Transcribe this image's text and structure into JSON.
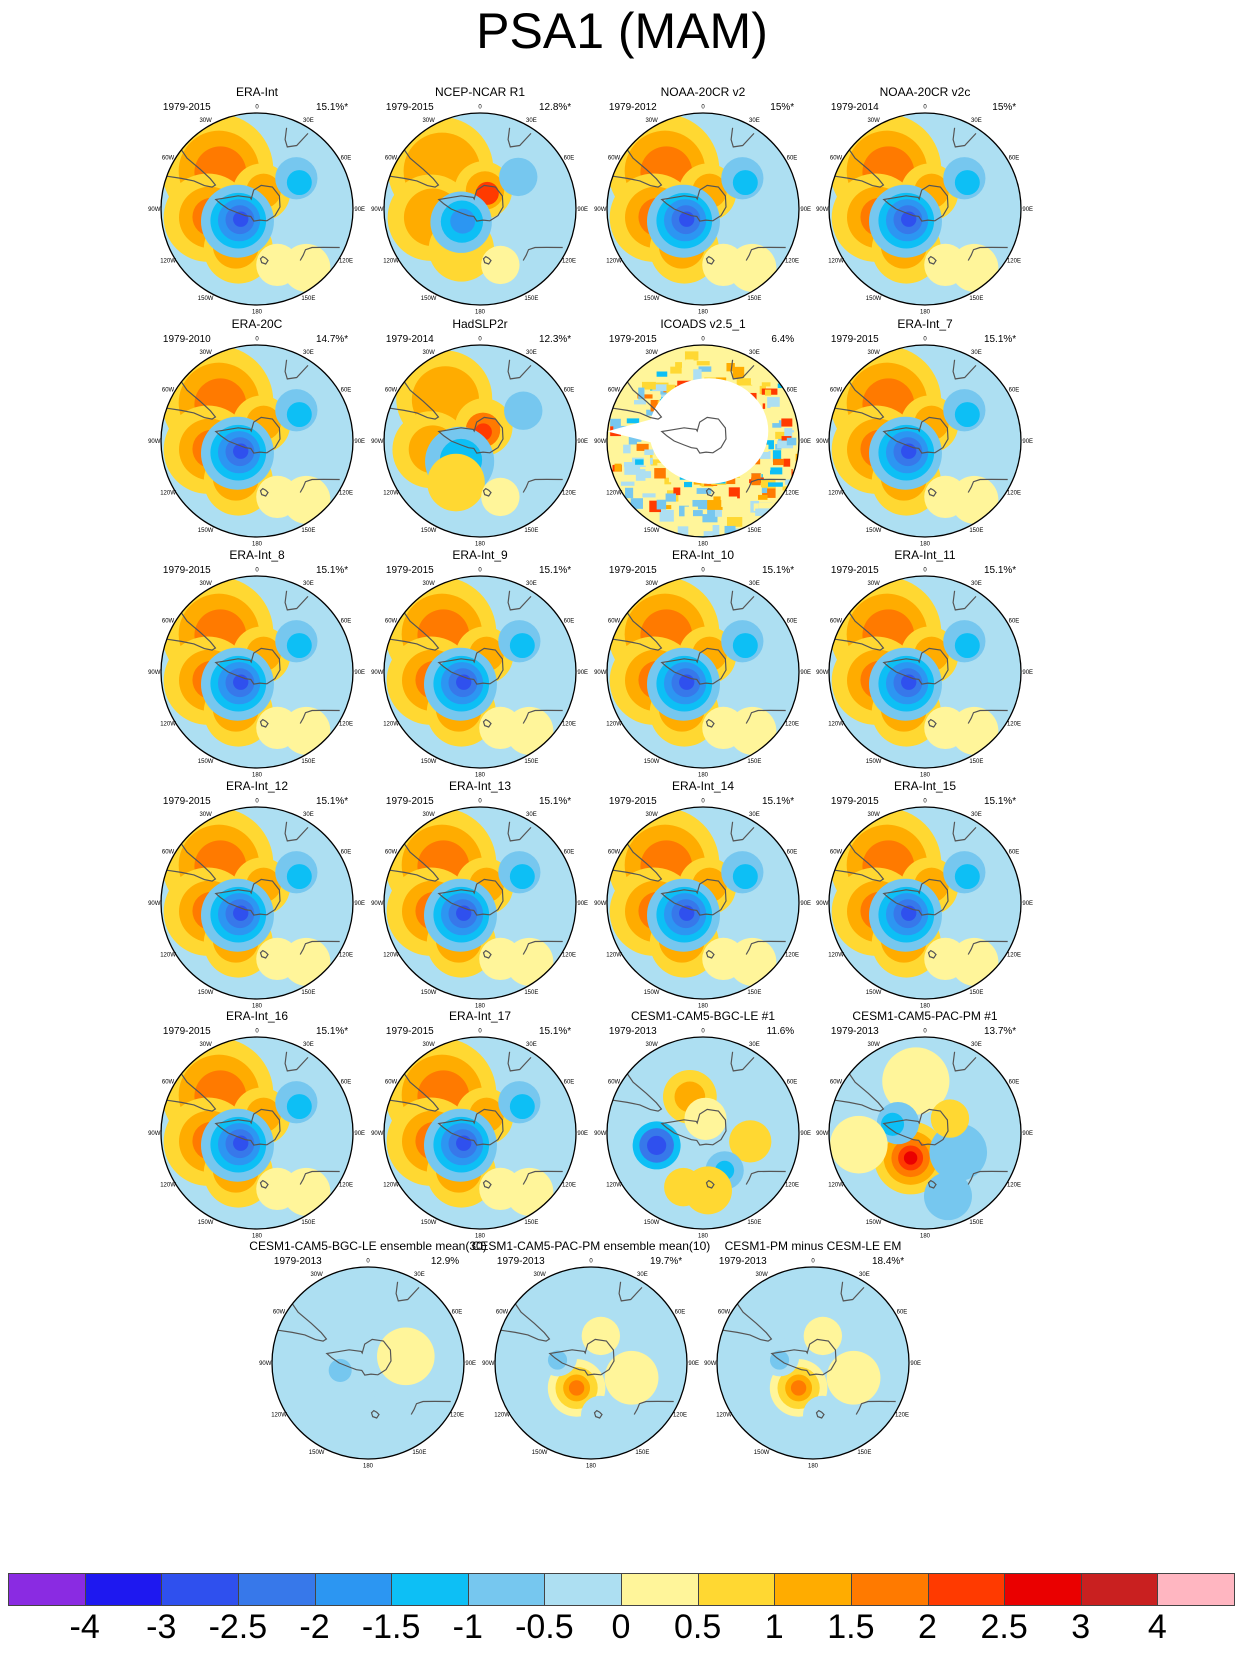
{
  "title": "PSA1 (MAM)",
  "colorbar": {
    "labels": [
      "-4",
      "-3",
      "-2.5",
      "-2",
      "-1.5",
      "-1",
      "-0.5",
      "0",
      "0.5",
      "1",
      "1.5",
      "2",
      "2.5",
      "3",
      "4"
    ],
    "colors": [
      "#8a2be2",
      "#1e18f0",
      "#2f50ee",
      "#3778ea",
      "#2c96f2",
      "#0dbff5",
      "#76c7ef",
      "#addff2",
      "#fff59a",
      "#ffd832",
      "#ffac00",
      "#ff7a00",
      "#ff3a00",
      "#ea0000",
      "#c92020",
      "#ffb6c1"
    ]
  },
  "panel_labels": {
    "lon_0": "0",
    "lon_30w": "30W",
    "lon_60w": "60W",
    "lon_90w": "90W",
    "lon_120w": "120W",
    "lon_150w": "150W",
    "lon_180": "180",
    "lon_150e": "150E",
    "lon_120e": "120E",
    "lon_90e": "90E",
    "lon_60e": "60E",
    "lon_30e": "30E"
  },
  "chart_data": {
    "type": "heatmap",
    "panels": [
      {
        "name": "ERA-Int",
        "period": "1979-2015",
        "variance": "15.1%*",
        "pattern": "era"
      },
      {
        "name": "NCEP-NCAR R1",
        "period": "1979-2015",
        "variance": "12.8%*",
        "pattern": "ncep"
      },
      {
        "name": "NOAA-20CR v2",
        "period": "1979-2012",
        "variance": "15%*",
        "pattern": "era"
      },
      {
        "name": "NOAA-20CR v2c",
        "period": "1979-2014",
        "variance": "15%*",
        "pattern": "era"
      },
      {
        "name": "ERA-20C",
        "period": "1979-2010",
        "variance": "14.7%*",
        "pattern": "era"
      },
      {
        "name": "HadSLP2r",
        "period": "1979-2014",
        "variance": "12.3%*",
        "pattern": "had"
      },
      {
        "name": "ICOADS v2.5_1",
        "period": "1979-2015",
        "variance": "6.4%",
        "pattern": "icoads"
      },
      {
        "name": "ERA-Int_7",
        "period": "1979-2015",
        "variance": "15.1%*",
        "pattern": "era"
      },
      {
        "name": "ERA-Int_8",
        "period": "1979-2015",
        "variance": "15.1%*",
        "pattern": "era"
      },
      {
        "name": "ERA-Int_9",
        "period": "1979-2015",
        "variance": "15.1%*",
        "pattern": "era"
      },
      {
        "name": "ERA-Int_10",
        "period": "1979-2015",
        "variance": "15.1%*",
        "pattern": "era"
      },
      {
        "name": "ERA-Int_11",
        "period": "1979-2015",
        "variance": "15.1%*",
        "pattern": "era"
      },
      {
        "name": "ERA-Int_12",
        "period": "1979-2015",
        "variance": "15.1%*",
        "pattern": "era"
      },
      {
        "name": "ERA-Int_13",
        "period": "1979-2015",
        "variance": "15.1%*",
        "pattern": "era"
      },
      {
        "name": "ERA-Int_14",
        "period": "1979-2015",
        "variance": "15.1%*",
        "pattern": "era"
      },
      {
        "name": "ERA-Int_15",
        "period": "1979-2015",
        "variance": "15.1%*",
        "pattern": "era"
      },
      {
        "name": "ERA-Int_16",
        "period": "1979-2015",
        "variance": "15.1%*",
        "pattern": "era"
      },
      {
        "name": "ERA-Int_17",
        "period": "1979-2015",
        "variance": "15.1%*",
        "pattern": "era"
      },
      {
        "name": "CESM1-CAM5-BGC-LE #1",
        "period": "1979-2013",
        "variance": "11.6%",
        "pattern": "bgc1"
      },
      {
        "name": "CESM1-CAM5-PAC-PM #1",
        "period": "1979-2013",
        "variance": "13.7%*",
        "pattern": "pac1"
      },
      {
        "name": "CESM1-CAM5-BGC-LE ensemble mean(30)",
        "period": "1979-2013",
        "variance": "12.9%",
        "pattern": "bgcem"
      },
      {
        "name": "CESM1-CAM5-PAC-PM ensemble mean(10)",
        "period": "1979-2013",
        "variance": "19.7%*",
        "pattern": "pacem"
      },
      {
        "name": "CESM1-PM minus CESM-LE EM",
        "period": "1979-2013",
        "variance": "18.4%*",
        "pattern": "pacem"
      }
    ]
  }
}
